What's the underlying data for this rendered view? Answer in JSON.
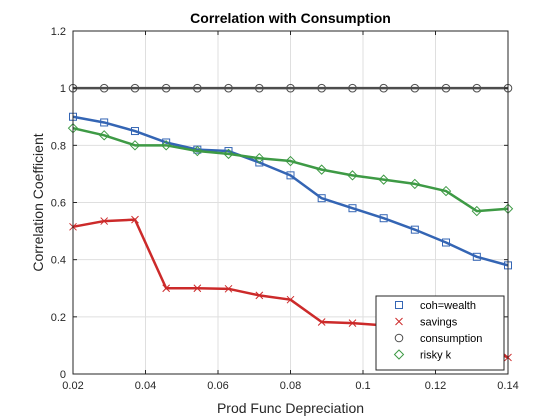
{
  "chart_data": {
    "type": "line",
    "title": "Correlation with Consumption",
    "xlabel": "Prod Func Depreciation",
    "ylabel": "Correlation Coefficient",
    "xlim": [
      0.02,
      0.14
    ],
    "ylim": [
      0,
      1.2
    ],
    "xticks": [
      0.02,
      0.04,
      0.06,
      0.08,
      0.1,
      0.12,
      0.14
    ],
    "xtick_labels": [
      "0.02",
      "0.04",
      "0.06",
      "0.08",
      "0.1",
      "0.12",
      "0.14"
    ],
    "yticks": [
      0,
      0.2,
      0.4,
      0.6,
      0.8,
      1.0,
      1.2
    ],
    "ytick_labels": [
      "0",
      "0.2",
      "0.4",
      "0.6",
      "0.8",
      "1",
      "1.2"
    ],
    "grid": true,
    "legend_position": "bottom-right",
    "x": [
      0.02,
      0.0286,
      0.0371,
      0.0457,
      0.0543,
      0.0629,
      0.0714,
      0.08,
      0.0886,
      0.0971,
      0.1057,
      0.1143,
      0.1229,
      0.1314,
      0.14
    ],
    "series": [
      {
        "name": "coh=wealth",
        "marker": "square",
        "color": "#3465b4",
        "values": [
          0.9,
          0.88,
          0.85,
          0.81,
          0.785,
          0.78,
          0.74,
          0.695,
          0.615,
          0.58,
          0.545,
          0.505,
          0.46,
          0.41,
          0.38
        ]
      },
      {
        "name": "savings",
        "marker": "x",
        "color": "#cc2a2a",
        "values": [
          0.515,
          0.535,
          0.54,
          0.3,
          0.3,
          0.298,
          0.275,
          0.26,
          0.182,
          0.178,
          0.17,
          0.158,
          0.135,
          0.105,
          0.058
        ]
      },
      {
        "name": "consumption",
        "marker": "circle",
        "color": "#4d4d4d",
        "values": [
          1.0,
          1.0,
          1.0,
          1.0,
          1.0,
          1.0,
          1.0,
          1.0,
          1.0,
          1.0,
          1.0,
          1.0,
          1.0,
          1.0,
          1.0
        ]
      },
      {
        "name": "risky k",
        "marker": "diamond",
        "color": "#3e9a45",
        "values": [
          0.86,
          0.835,
          0.8,
          0.8,
          0.78,
          0.77,
          0.755,
          0.745,
          0.715,
          0.695,
          0.68,
          0.665,
          0.64,
          0.57,
          0.578
        ]
      }
    ]
  }
}
